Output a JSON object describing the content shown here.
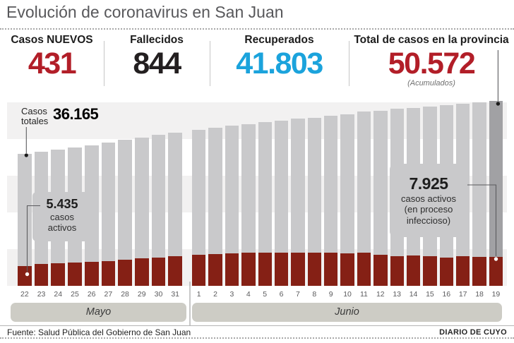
{
  "title": "Evolución de coronavirus en San Juan",
  "stats": [
    {
      "label": "Casos NUEVOS",
      "value": "431",
      "color": "#b21e28"
    },
    {
      "label": "Fallecidos",
      "value": "844",
      "color": "#231f20"
    },
    {
      "label": "Recuperados",
      "value": "41.803",
      "color": "#1ba3dc"
    },
    {
      "label": "Total de casos en la provincia",
      "value": "50.572",
      "note": "(Acumulados)",
      "color": "#b21e28"
    }
  ],
  "chart_data": {
    "type": "bar",
    "title": "Evolución de coronavirus en San Juan",
    "xlabel": "",
    "ylabel": "",
    "ylim": [
      0,
      50572
    ],
    "grid": "horizontal light-gray bands",
    "legend_position": "none",
    "highlight_index": 28,
    "highlight_color": "#a1a1a4",
    "month_groups": [
      {
        "key": "may",
        "label": "Mayo",
        "days": [
          "22",
          "23",
          "24",
          "25",
          "26",
          "27",
          "28",
          "29",
          "30",
          "31"
        ]
      },
      {
        "key": "june",
        "label": "Junio",
        "days": [
          "1",
          "2",
          "3",
          "4",
          "5",
          "6",
          "7",
          "8",
          "9",
          "10",
          "11",
          "12",
          "13",
          "14",
          "15",
          "16",
          "17",
          "18",
          "19"
        ]
      }
    ],
    "categories": [
      "22",
      "23",
      "24",
      "25",
      "26",
      "27",
      "28",
      "29",
      "30",
      "31",
      "1",
      "2",
      "3",
      "4",
      "5",
      "6",
      "7",
      "8",
      "9",
      "10",
      "11",
      "12",
      "13",
      "14",
      "15",
      "16",
      "17",
      "18",
      "19"
    ],
    "series": [
      {
        "name": "Casos totales (acumulados)",
        "color": "#c9c9cb",
        "values": [
          36165,
          36700,
          37300,
          37850,
          38400,
          39100,
          39900,
          40600,
          41300,
          41900,
          42600,
          43200,
          43800,
          44300,
          44700,
          45200,
          45700,
          46000,
          46500,
          47000,
          47600,
          47900,
          48400,
          48700,
          49100,
          49500,
          49800,
          50200,
          50572
        ]
      },
      {
        "name": "Casos activos (en proceso infeccioso)",
        "color": "#852015",
        "values": [
          5435,
          5900,
          6100,
          6300,
          6550,
          6800,
          7200,
          7450,
          7800,
          8050,
          8500,
          8750,
          8900,
          9000,
          9100,
          9100,
          9100,
          9100,
          9000,
          8900,
          9000,
          8450,
          8150,
          8300,
          8050,
          7800,
          8050,
          7900,
          7925
        ]
      }
    ],
    "annotation_values": {
      "first_total": 36165,
      "first_active": 5435,
      "last_active": 7925,
      "last_total": 50572
    }
  },
  "annotations": {
    "casos_totales_label": "Casos totales",
    "casos_totales_value": "36.165",
    "first_active": {
      "value": "5.435",
      "line1": "casos",
      "line2": "activos"
    },
    "last_active": {
      "value": "7.925",
      "line1": "casos activos",
      "line2": "(en proceso",
      "line3": "infeccioso)"
    }
  },
  "months": {
    "may": "Mayo",
    "june": "Junio"
  },
  "footer": {
    "source": "Fuente: Salud Pública del Gobierno de San Juan",
    "credit": "DIARIO DE CUYO"
  },
  "colors": {
    "accent_red": "#b21e28",
    "accent_blue": "#1ba3dc",
    "bar_gray": "#c9c9cb",
    "bar_dark_gray": "#a1a1a4",
    "bar_red": "#852015",
    "stripe": "#f2f1f1",
    "band": "#cdccc5"
  }
}
